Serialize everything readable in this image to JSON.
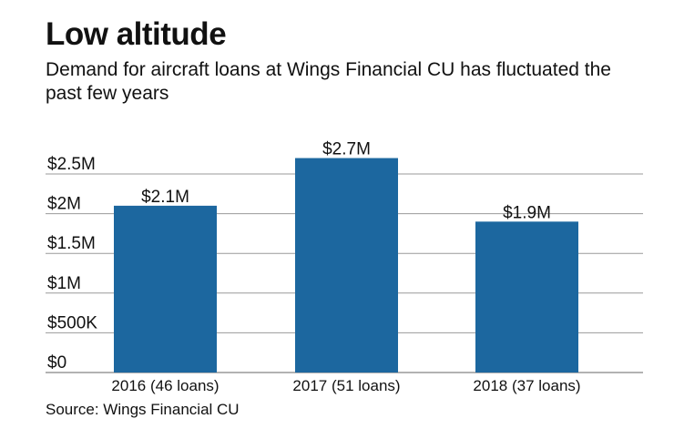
{
  "title": "Low altitude",
  "subtitle": "Demand for aircraft loans at Wings Financial CU has fluctuated the past few years",
  "source": "Source: Wings Financial CU",
  "chart_data": {
    "type": "bar",
    "categories": [
      "2016 (46 loans)",
      "2017 (51 loans)",
      "2018 (37 loans)"
    ],
    "values": [
      2.1,
      2.7,
      1.9
    ],
    "data_labels": [
      "$2.1M",
      "$2.7M",
      "$1.9M"
    ],
    "unit": "millions of dollars",
    "yticks": [
      0,
      0.5,
      1,
      1.5,
      2,
      2.5
    ],
    "ytick_labels": [
      "$0",
      "$500K",
      "$1M",
      "$1.5M",
      "$2M",
      "$2.5M"
    ],
    "ylim": [
      0,
      2.5
    ],
    "grid": true,
    "bar_color": "#1c679f",
    "grid_color": "#999999"
  }
}
